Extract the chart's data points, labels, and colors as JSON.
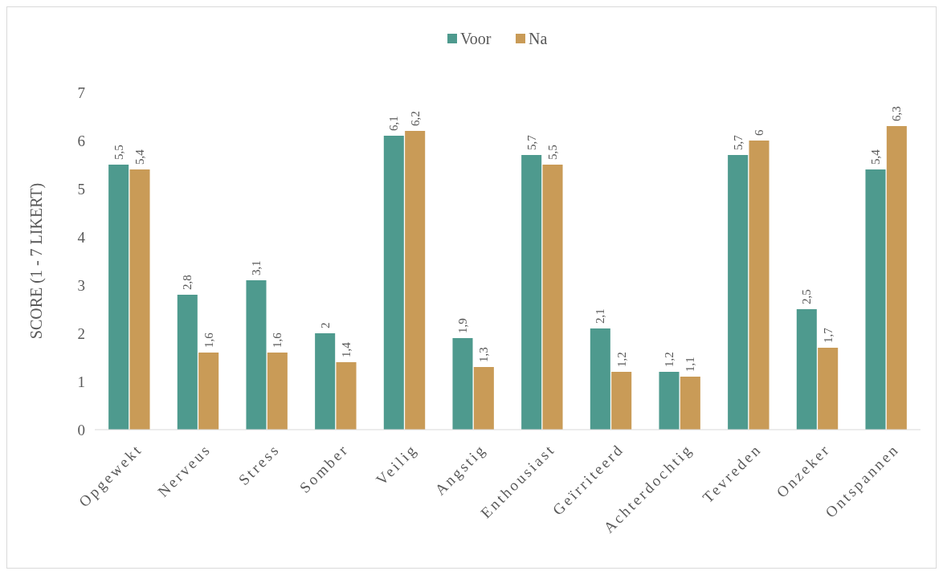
{
  "chart_data": {
    "type": "bar",
    "ylabel": "SCORE (1 - 7 LIKERT)",
    "categories": [
      "Opgewekt",
      "Nerveus",
      "Stress",
      "Somber",
      "Veilig",
      "Angstig",
      "Enthousiast",
      "Geïrriteerd",
      "Achterdochtig",
      "Tevreden",
      "Onzeker",
      "Ontspannen"
    ],
    "series": [
      {
        "name": "Voor",
        "color": "#4e9a8e",
        "values": [
          5.5,
          2.8,
          3.1,
          2,
          6.1,
          1.9,
          5.7,
          2.1,
          1.2,
          5.7,
          2.5,
          5.4
        ],
        "value_labels": [
          "5,5",
          "2,8",
          "3,1",
          "2",
          "6,1",
          "1,9",
          "5,7",
          "2,1",
          "1,2",
          "5,7",
          "2,5",
          "5,4"
        ]
      },
      {
        "name": "Na",
        "color": "#c99b57",
        "values": [
          5.4,
          1.6,
          1.6,
          1.4,
          6.2,
          1.3,
          5.5,
          1.2,
          1.1,
          6,
          1.7,
          6.3
        ],
        "value_labels": [
          "5,4",
          "1,6",
          "1,6",
          "1,4",
          "6,2",
          "1,3",
          "5,5",
          "1,2",
          "1,1",
          "6",
          "1,7",
          "6,3"
        ]
      }
    ],
    "ylim": [
      0,
      7
    ],
    "yticks": [
      0,
      1,
      2,
      3,
      4,
      5,
      6,
      7
    ],
    "legend": "top",
    "grid": false
  }
}
